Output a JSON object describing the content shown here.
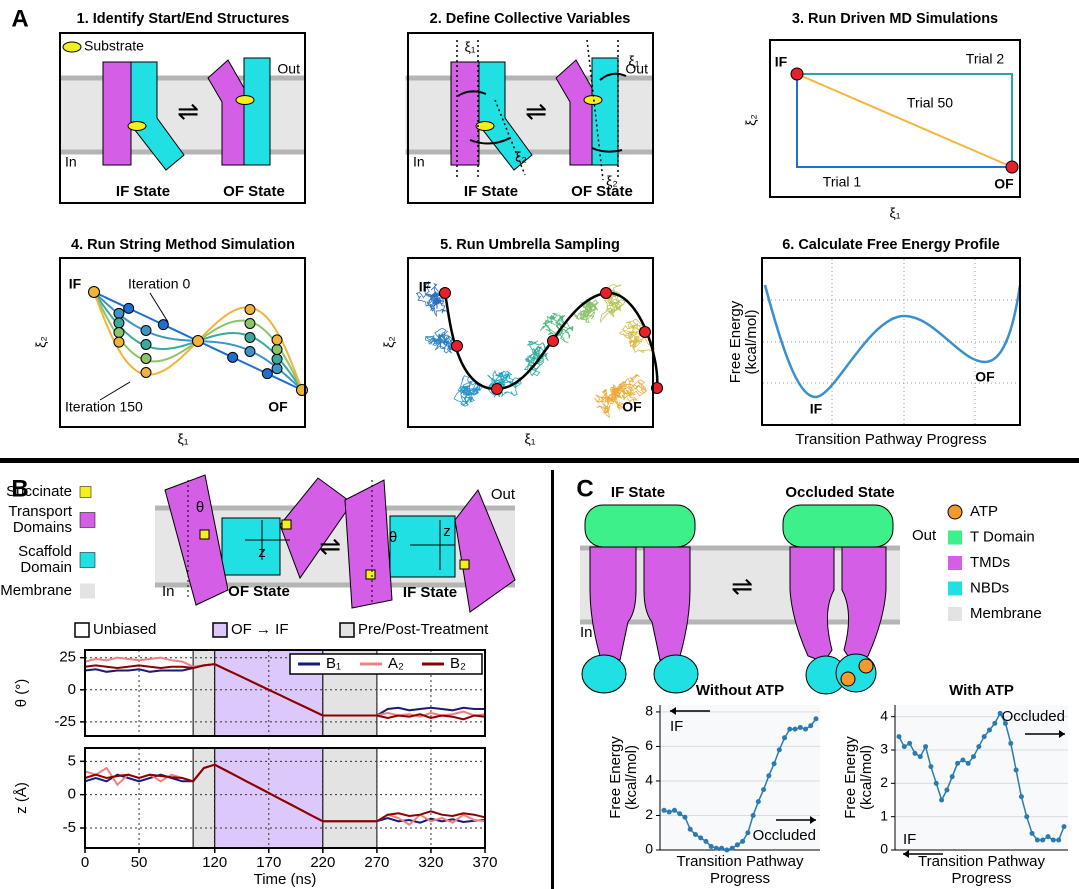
{
  "labels": {
    "a": "A",
    "b": "B",
    "c": "C"
  },
  "panel_a": {
    "step1": {
      "title": "1. Identify Start/End Structures",
      "substrate": "Substrate",
      "out": "Out",
      "in": "In",
      "if_state": "IF State",
      "of_state": "OF State"
    },
    "step2": {
      "title": "2. Define Collective Variables",
      "xi1": "ξ₁",
      "xi2": "ξ₂",
      "out": "Out",
      "in": "In",
      "if_state": "IF State",
      "of_state": "OF State"
    },
    "step3": {
      "title": "3. Run Driven MD Simulations",
      "start": "IF",
      "end": "OF",
      "trials": [
        "Trial 2",
        "Trial 50",
        "Trial 1"
      ],
      "x_axis": "ξ₁",
      "y_axis": "ξ₂"
    },
    "step4": {
      "title": "4. Run String Method Simulation",
      "start": "IF",
      "end": "OF",
      "first": "Iteration 0",
      "last": "Iteration 150",
      "x_axis": "ξ₁",
      "y_axis": "ξ₂"
    },
    "step5": {
      "title": "5. Run Umbrella Sampling",
      "start": "IF",
      "end": "OF",
      "x_axis": "ξ₁",
      "y_axis": "ξ₂"
    },
    "step6": {
      "title": "6. Calculate Free Energy Profile",
      "y_axis": [
        "Free Energy",
        "(kcal/mol)"
      ],
      "x_axis": "Transition Pathway Progress",
      "minima": [
        "IF",
        "OF"
      ]
    }
  },
  "panel_b": {
    "legend": [
      {
        "name": [
          "Succinate"
        ],
        "color": "#f4f01c"
      },
      {
        "name": [
          "Transport",
          "Domains"
        ],
        "color": "#d45ee6"
      },
      {
        "name": [
          "Scaffold",
          "Domain"
        ],
        "color": "#20e0e3"
      },
      {
        "name": [
          "Membrane"
        ],
        "color": "#e3e3e3"
      }
    ],
    "out": "Out",
    "in": "In",
    "of_state": "OF State",
    "if_state": "IF State",
    "theta": "θ",
    "z": "z",
    "phases": [
      {
        "name": "Unbiased",
        "color": "#ffffff"
      },
      {
        "name": "OF → IF",
        "color": "#dcc8fa"
      },
      {
        "name": "Pre/Post-Treatment",
        "color": "#e3e3e3"
      }
    ]
  },
  "panel_c": {
    "if_state": "IF State",
    "occluded_state": "Occluded State",
    "out": "Out",
    "in": "In",
    "legend": [
      {
        "name": "ATP",
        "color": "#f39a2b"
      },
      {
        "name": "T Domain",
        "color": "#3ef08a"
      },
      {
        "name": "TMDs",
        "color": "#d45ee6"
      },
      {
        "name": "NBDs",
        "color": "#20e0e3"
      },
      {
        "name": "Membrane",
        "color": "#e3e3e3"
      }
    ]
  },
  "chart_data": [
    {
      "type": "line",
      "y_label": "θ (°)",
      "x": [
        0,
        10,
        20,
        30,
        40,
        50,
        60,
        70,
        80,
        90,
        100,
        110,
        120,
        130,
        140,
        150,
        160,
        170,
        180,
        190,
        200,
        210,
        220,
        230,
        240,
        250,
        260,
        270,
        280,
        290,
        300,
        310,
        320,
        330,
        340,
        350,
        360,
        370
      ],
      "xlim": [
        0,
        370
      ],
      "ylim": [
        -36,
        31
      ],
      "yticks": [
        25,
        0,
        -25
      ],
      "grid": true,
      "spans": [
        {
          "from": 100,
          "to": 120,
          "color": "#e3e3e3"
        },
        {
          "from": 120,
          "to": 220,
          "color": "#dcc8fa"
        },
        {
          "from": 220,
          "to": 270,
          "color": "#e3e3e3"
        }
      ],
      "series": [
        {
          "name": "B₁",
          "color": "#1a1a78",
          "values": [
            15,
            16,
            14,
            15,
            15,
            16,
            14,
            15,
            15,
            15,
            17,
            19,
            20,
            16,
            12,
            8,
            4,
            0,
            -4,
            -8,
            -12,
            -16,
            -20,
            -20,
            -20,
            -20,
            -20,
            -20,
            -15,
            -14,
            -16,
            -15,
            -14,
            -15,
            -16,
            -14,
            -15,
            -15
          ]
        },
        {
          "name": "A₂",
          "color": "#f08080",
          "values": [
            22,
            24,
            23,
            25,
            24,
            23,
            24,
            25,
            23,
            22,
            18,
            19,
            20,
            16,
            12,
            8,
            4,
            0,
            -4,
            -8,
            -12,
            -16,
            -20,
            -20,
            -20,
            -20,
            -20,
            -20,
            -18,
            -20,
            -19,
            -21,
            -18,
            -20,
            -19,
            -17,
            -20,
            -19
          ]
        },
        {
          "name": "B₂",
          "color": "#8b0000",
          "values": [
            18,
            19,
            18,
            17,
            18,
            19,
            18,
            17,
            18,
            18,
            17,
            19,
            20,
            16,
            12,
            8,
            4,
            0,
            -4,
            -8,
            -12,
            -16,
            -20,
            -20,
            -20,
            -20,
            -20,
            -20,
            -22,
            -20,
            -21,
            -19,
            -22,
            -20,
            -21,
            -23,
            -20,
            -21
          ]
        }
      ]
    },
    {
      "type": "line",
      "y_label": "z (Å)",
      "x_label": "Time (ns)",
      "x": [
        0,
        10,
        20,
        30,
        40,
        50,
        60,
        70,
        80,
        90,
        100,
        110,
        120,
        130,
        140,
        150,
        160,
        170,
        180,
        190,
        200,
        210,
        220,
        230,
        240,
        250,
        260,
        270,
        280,
        290,
        300,
        310,
        320,
        330,
        340,
        350,
        360,
        370
      ],
      "xlim": [
        0,
        370
      ],
      "xticks": [
        0,
        50,
        120,
        170,
        220,
        270,
        320,
        370
      ],
      "ylim": [
        -8,
        7
      ],
      "yticks": [
        5,
        0,
        -5
      ],
      "grid": true,
      "spans": [
        {
          "from": 100,
          "to": 120,
          "color": "#e3e3e3"
        },
        {
          "from": 120,
          "to": 220,
          "color": "#dcc8fa"
        },
        {
          "from": 220,
          "to": 270,
          "color": "#e3e3e3"
        }
      ],
      "series": [
        {
          "color": "#1a1a78",
          "values": [
            2,
            2.5,
            2,
            3,
            2.5,
            2,
            2.5,
            3,
            2.5,
            2,
            2,
            4,
            4.5,
            3.65,
            2.8,
            1.95,
            1.1,
            0.25,
            -0.6,
            -1.45,
            -2.3,
            -3.15,
            -4,
            -4,
            -4,
            -4,
            -4,
            -4,
            -3.5,
            -4,
            -3.8,
            -4.2,
            -3.6,
            -4,
            -3.7,
            -4.1,
            -3.9,
            -3.8
          ]
        },
        {
          "color": "#f08080",
          "values": [
            3.5,
            3,
            4,
            1.5,
            3,
            2.5,
            3,
            2,
            3,
            2.5,
            2,
            4,
            4.5,
            3.65,
            2.8,
            1.95,
            1.1,
            0.25,
            -0.6,
            -1.45,
            -2.3,
            -3.15,
            -4,
            -4,
            -4,
            -4,
            -4,
            -4,
            -3,
            -3.5,
            -4.5,
            -3,
            -4,
            -3.5,
            -4.2,
            -3,
            -3.8,
            -4
          ]
        },
        {
          "color": "#8b0000",
          "values": [
            2.5,
            3,
            2.5,
            2.8,
            3,
            2.5,
            3,
            2.8,
            2.6,
            2.5,
            2,
            4,
            4.5,
            3.65,
            2.8,
            1.95,
            1.1,
            0.25,
            -0.6,
            -1.45,
            -2.3,
            -3.15,
            -4,
            -4,
            -4,
            -4,
            -4,
            -4,
            -3,
            -2.8,
            -3.2,
            -3,
            -2.5,
            -3,
            -3.2,
            -2.8,
            -3,
            -3.4
          ]
        }
      ]
    },
    {
      "type": "profile",
      "title": "Without ATP",
      "y_label": [
        "Free Energy",
        "(kcal/mol)"
      ],
      "x_label": [
        "Transition Pathway",
        "Progress"
      ],
      "ylim": [
        0,
        8.4
      ],
      "yticks": [
        0,
        2,
        4,
        6,
        8
      ],
      "grid": true,
      "color": "#2b7bb0",
      "annotations": [
        {
          "text": "IF",
          "direction": "left"
        },
        {
          "text": "Occluded",
          "direction": "right"
        }
      ],
      "values": [
        2.3,
        2.2,
        2.3,
        2.1,
        1.9,
        1.2,
        0.9,
        0.7,
        0.5,
        0.2,
        0.1,
        0.1,
        0.0,
        0.1,
        0.3,
        0.5,
        1.0,
        2.0,
        2.8,
        3.5,
        4.3,
        5.0,
        5.8,
        6.5,
        7.0,
        7.0,
        7.1,
        7.0,
        7.2,
        7.6
      ]
    },
    {
      "type": "profile",
      "title": "With ATP",
      "y_label": [
        "Free Energy",
        "(kcal/mol)"
      ],
      "x_label": [
        "Transition Pathway",
        "Progress"
      ],
      "ylim": [
        0,
        4.35
      ],
      "yticks": [
        0,
        1,
        2,
        3,
        4
      ],
      "grid": true,
      "color": "#2b7bb0",
      "annotations": [
        {
          "text": "Occluded",
          "direction": "right"
        },
        {
          "text": "IF",
          "direction": "left"
        }
      ],
      "values": [
        3.4,
        3.1,
        3.2,
        2.9,
        2.8,
        3.1,
        2.5,
        2.0,
        1.5,
        1.8,
        2.2,
        2.6,
        2.7,
        2.6,
        2.8,
        3.1,
        3.4,
        3.6,
        3.8,
        4.1,
        3.8,
        3.2,
        2.4,
        1.6,
        1.0,
        0.5,
        0.3,
        0.3,
        0.4,
        0.3,
        0.3,
        0.7
      ]
    }
  ]
}
